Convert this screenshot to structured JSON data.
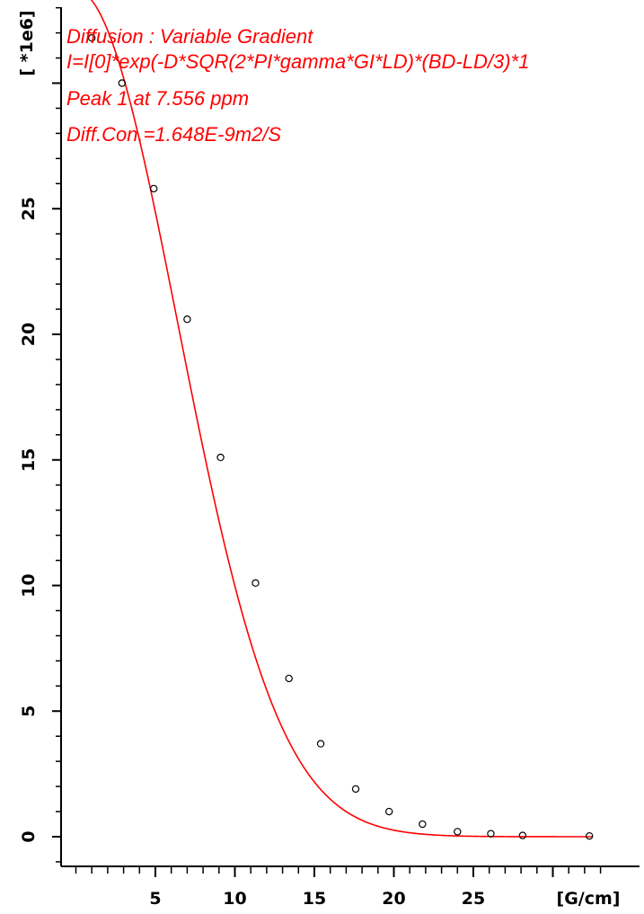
{
  "chart_data": {
    "type": "scatter",
    "xlabel": "[G/cm]",
    "ylabel": "[ *1e6]",
    "xlim": [
      -0.5,
      33.5
    ],
    "ylim": [
      -1.2,
      33.0
    ],
    "x_ticks": [
      5,
      10,
      15,
      20,
      25
    ],
    "y_ticks": [
      0,
      5,
      10,
      15,
      20,
      25
    ],
    "annotations": [
      "Diffusion : Variable Gradient",
      "I=I[0]*exp(-D*SQR(2*PI*gamma*GI*LD)*(BD-LD/3)*1",
      "Peak 1 at 7.556 ppm",
      "Diff.Con.=1.648E-9m2/S"
    ],
    "points": {
      "x": [
        1.0,
        2.9,
        4.9,
        7.0,
        9.1,
        11.3,
        13.4,
        15.4,
        17.6,
        19.7,
        21.8,
        24.0,
        26.1,
        28.1,
        32.3
      ],
      "y": [
        31.8,
        30.0,
        25.8,
        20.6,
        15.1,
        10.1,
        6.3,
        3.7,
        1.9,
        1.0,
        0.5,
        0.2,
        0.12,
        0.05,
        0.03
      ]
    },
    "fit": {
      "I0": 33.7,
      "k": 0.01217
    },
    "colors": {
      "fit_line": "#ff0000",
      "points": "#000000",
      "annotation": "#ff0000",
      "axes": "#000000"
    }
  }
}
